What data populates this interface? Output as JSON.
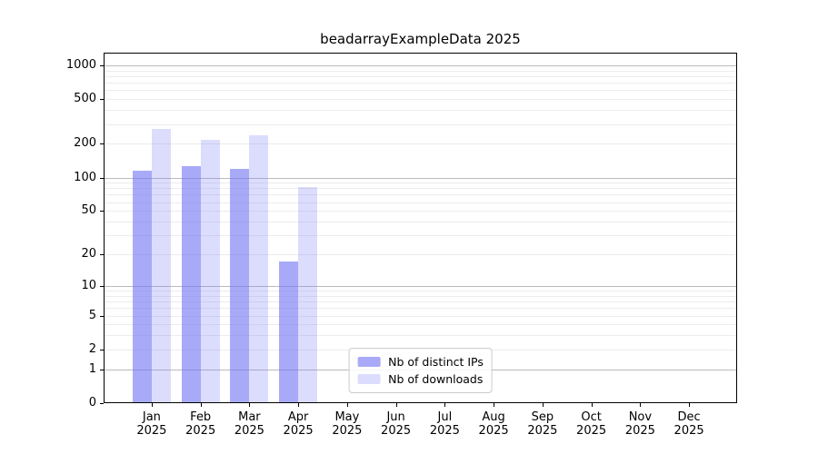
{
  "figure": {
    "background": "#ffffff"
  },
  "chart_data": {
    "type": "bar",
    "title": "beadarrayExampleData 2025",
    "months": [
      "Jan",
      "Feb",
      "Mar",
      "Apr",
      "May",
      "Jun",
      "Jul",
      "Aug",
      "Sep",
      "Oct",
      "Nov",
      "Dec"
    ],
    "year": "2025",
    "series": [
      {
        "name": "Nb of distinct IPs",
        "color": "rgba(115,118,243,0.62)",
        "values": [
          116,
          127,
          120,
          17,
          0,
          0,
          0,
          0,
          0,
          0,
          0,
          0
        ]
      },
      {
        "name": "Nb of downloads",
        "color": "rgba(115,118,243,0.25)",
        "values": [
          270,
          217,
          237,
          82,
          0,
          0,
          0,
          0,
          0,
          0,
          0,
          0
        ]
      }
    ],
    "y_axis": {
      "scale": "log10(value+1)",
      "tick_values": [
        0,
        1,
        2,
        5,
        10,
        20,
        50,
        100,
        200,
        500,
        1000
      ],
      "range": [
        0,
        1270
      ]
    },
    "grid": {
      "major_values": [
        1,
        10,
        100,
        1000
      ],
      "minor_values": [
        2,
        3,
        4,
        5,
        6,
        7,
        8,
        9,
        20,
        30,
        40,
        50,
        60,
        70,
        80,
        90,
        200,
        300,
        400,
        500,
        600,
        700,
        800,
        900
      ],
      "major_color": "#bbbbbb",
      "minor_color": "#ececec"
    },
    "legend_position": "lower center"
  }
}
